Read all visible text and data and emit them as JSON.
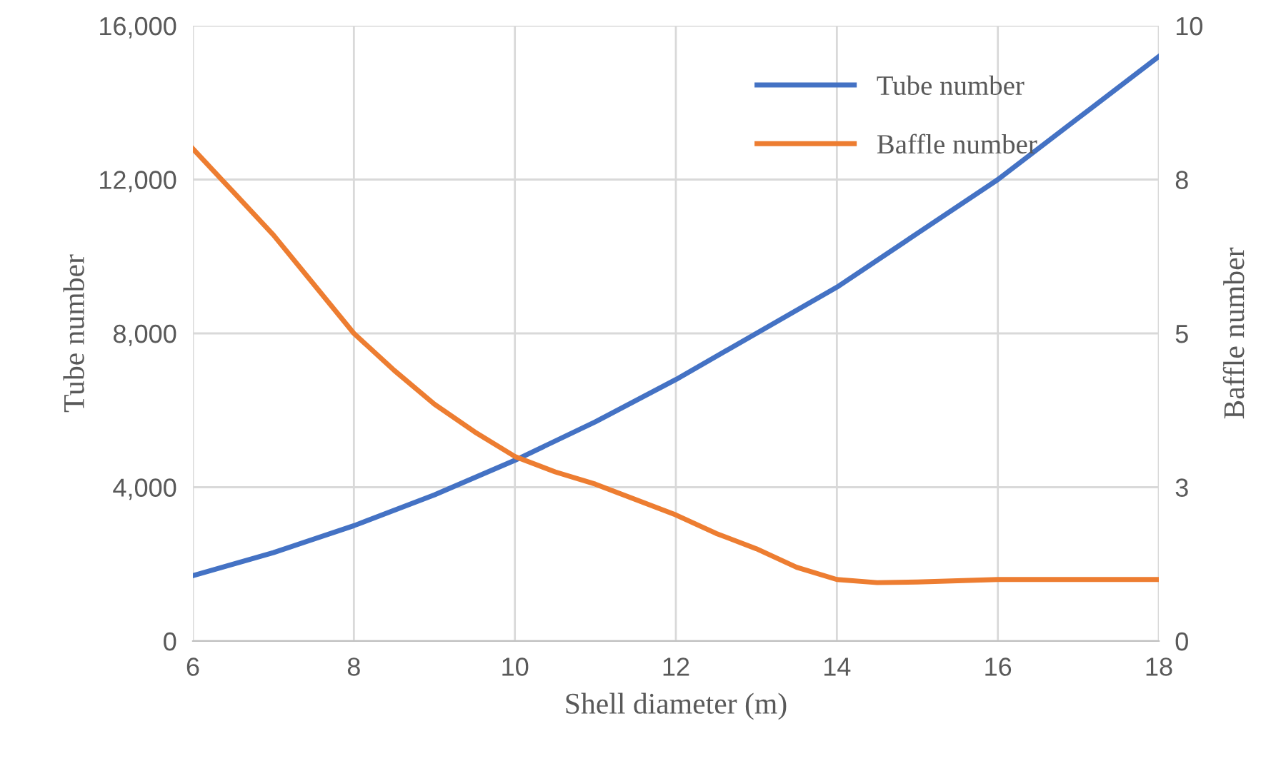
{
  "chart_data": {
    "type": "line",
    "xlabel": "Shell diameter (m)",
    "ylabel": "Tube number",
    "y2label": "Baffle number",
    "series": [
      {
        "name": "Tube number",
        "color": "#4472c4",
        "x": [
          6,
          7,
          8,
          9,
          10,
          11,
          12,
          13,
          14,
          15,
          16,
          17,
          18
        ],
        "values": [
          1700,
          2300,
          3000,
          3800,
          4700,
          5700,
          6800,
          8000,
          9200,
          10600,
          12000,
          13600,
          15200
        ]
      },
      {
        "name": "Baffle number",
        "color": "#ed7d31",
        "axis": "y2",
        "x": [
          6,
          6.5,
          7,
          7.5,
          8,
          8.5,
          9,
          9.5,
          10,
          10.5,
          11,
          11.5,
          12,
          12.5,
          13,
          13.5,
          14,
          14.5,
          15,
          15.5,
          16,
          17,
          18
        ],
        "values": [
          8,
          7.3,
          6.6,
          5.8,
          5,
          4.4,
          3.85,
          3.4,
          3,
          2.75,
          2.55,
          2.3,
          2.05,
          1.75,
          1.5,
          1.2,
          1,
          0.95,
          0.96,
          0.98,
          1,
          1,
          1
        ]
      }
    ],
    "xlim": [
      6,
      18
    ],
    "xticks": [
      6,
      8,
      10,
      12,
      14,
      16,
      18
    ],
    "ylim": [
      0,
      16000
    ],
    "yticks": [
      {
        "value": 0,
        "label": "0"
      },
      {
        "value": 4000,
        "label": "4,000"
      },
      {
        "value": 8000,
        "label": "8,000"
      },
      {
        "value": 12000,
        "label": "12,000"
      },
      {
        "value": 16000,
        "label": "16,000"
      }
    ],
    "y2lim": [
      0,
      10
    ],
    "y2ticks": [
      0,
      {
        "value": 2.5,
        "label": "3"
      },
      5,
      {
        "value": 7.5,
        "label": "8"
      },
      10
    ],
    "grid": true,
    "legend": "top right",
    "marker": "none",
    "line_style": "solid"
  }
}
